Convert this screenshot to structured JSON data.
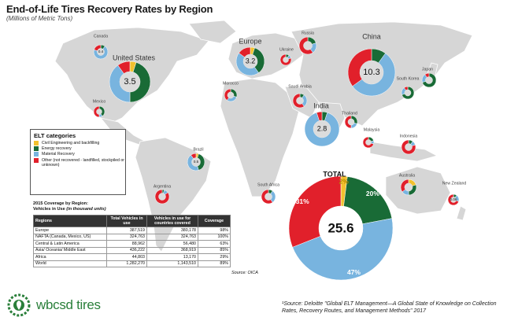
{
  "title": "End-of-Life Tires Recovery Rates by Region",
  "subtitle": "(Millions of Metric Tons)",
  "legend": {
    "title": "ELT categories",
    "items": [
      {
        "label": "Civil Engineering and backfilling",
        "color": "#f2c12e"
      },
      {
        "label": "Energy recovery",
        "color": "#196b36"
      },
      {
        "label": "Material Recovery",
        "color": "#78b4df"
      },
      {
        "label": "Other (not recovered - landfilled, stockpiled or unknown)",
        "color": "#e1202b"
      }
    ]
  },
  "coverage": {
    "title_line1": "2015 Coverage by Region:",
    "title_line2": "Vehicles in Use",
    "title_unit": "(in thousand units)",
    "headers": [
      "Regions",
      "Total Vehicles in use",
      "Vehicles in use for countries covered",
      "Coverage"
    ],
    "rows": [
      [
        "Europe",
        "387,519",
        "380,178",
        "98%"
      ],
      [
        "NAFTA (Canada, Mexico, US)",
        "324,763",
        "324,763",
        "100%"
      ],
      [
        "Central & Latin America",
        "88,962",
        "56,480",
        "63%"
      ],
      [
        "Asia/ Oceania/ Middle East",
        "436,222",
        "368,919",
        "85%"
      ],
      [
        "Africa",
        "44,803",
        "13,170",
        "29%"
      ],
      [
        "World",
        "1,282,270",
        "1,143,510",
        "89%"
      ]
    ],
    "source": "Source: OICA"
  },
  "logo_text": "wbcsd tires",
  "footnote": "¹Source: Deloitte \"Global ELT Management—A Global State of Knowledge on Collection Rates, Recovery Routes, and Management Methods\" 2017",
  "chart_data": {
    "type": "pie",
    "category_order": [
      "Civil Engineering and backfilling",
      "Energy recovery",
      "Material Recovery",
      "Other (not recovered - landfilled, stockpiled or unknown)"
    ],
    "total": {
      "label": "TOTAL",
      "value": "25.6",
      "slices": [
        2,
        20,
        47,
        31
      ],
      "slice_labels": [
        "2%",
        "20%",
        "47%",
        "31%"
      ]
    },
    "regions": [
      {
        "name": "Canada",
        "value": "0.4",
        "slices": [
          0,
          10,
          70,
          20
        ]
      },
      {
        "name": "United States",
        "value": "3.5",
        "slices": [
          5,
          45,
          40,
          10
        ]
      },
      {
        "name": "Mexico",
        "value": "",
        "slices": [
          0,
          40,
          10,
          50
        ]
      },
      {
        "name": "Brazil",
        "value": "0.5",
        "slices": [
          5,
          40,
          45,
          10
        ]
      },
      {
        "name": "Argentina",
        "value": "",
        "slices": [
          0,
          5,
          10,
          85
        ]
      },
      {
        "name": "Europe",
        "value": "3.2",
        "slices": [
          5,
          35,
          45,
          15
        ]
      },
      {
        "name": "Russia",
        "value": "",
        "slices": [
          0,
          20,
          20,
          60
        ]
      },
      {
        "name": "Ukraine",
        "value": "",
        "slices": [
          0,
          10,
          10,
          80
        ]
      },
      {
        "name": "Morocco",
        "value": "",
        "slices": [
          0,
          30,
          30,
          40
        ]
      },
      {
        "name": "Saudi Arabia",
        "value": "",
        "slices": [
          0,
          10,
          30,
          60
        ]
      },
      {
        "name": "South Africa",
        "value": "",
        "slices": [
          0,
          10,
          30,
          60
        ]
      },
      {
        "name": "China",
        "value": "10.3",
        "slices": [
          0,
          10,
          55,
          35
        ]
      },
      {
        "name": "India",
        "value": "2.8",
        "slices": [
          0,
          5,
          90,
          5
        ]
      },
      {
        "name": "South Korea",
        "value": "",
        "slices": [
          0,
          70,
          20,
          10
        ]
      },
      {
        "name": "Japan",
        "value": "",
        "slices": [
          0,
          70,
          20,
          10
        ]
      },
      {
        "name": "Thailand",
        "value": "",
        "slices": [
          0,
          30,
          20,
          50
        ]
      },
      {
        "name": "Malaysia",
        "value": "",
        "slices": [
          0,
          20,
          10,
          70
        ]
      },
      {
        "name": "Indonesia",
        "value": "",
        "slices": [
          0,
          10,
          10,
          80
        ]
      },
      {
        "name": "Australia",
        "value": "",
        "slices": [
          20,
          30,
          15,
          35
        ]
      },
      {
        "name": "New Zealand",
        "value": "0.06",
        "slices": [
          0,
          10,
          20,
          70
        ]
      }
    ]
  }
}
